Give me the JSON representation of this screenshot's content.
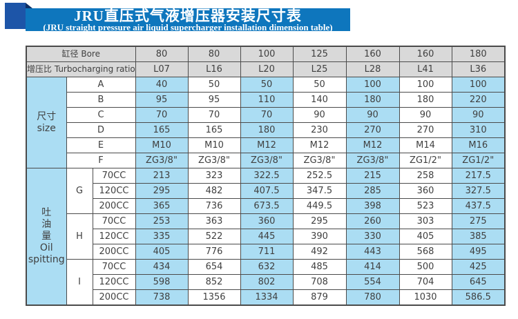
{
  "banner": {
    "title_zh": "JRU直压式气液增压器安装尺寸表",
    "title_en": "(JRU straight pressure air liquid supercharger installation dimension table)"
  },
  "colors": {
    "banner_blue": "#0e76bd",
    "ribbon_square_blue": "#1d55a8",
    "ribbon_fold_navy": "#0d2f66",
    "cell_highlight_blue": "#abddf3",
    "header_row_gray": "#d9d9d9",
    "border_gray": "#4a4a4a",
    "text_gray": "#3f3f3f"
  },
  "table": {
    "header_rows": [
      {
        "label": "缸径 Bore",
        "values": [
          "80",
          "80",
          "100",
          "125",
          "160",
          "160",
          "180"
        ]
      },
      {
        "label": "增压比 Turbocharging ratio",
        "values": [
          "L07",
          "L16",
          "L20",
          "L25",
          "L28",
          "L41",
          "L36"
        ]
      }
    ],
    "size_section": {
      "group_lines": [
        "尺寸",
        "size"
      ],
      "rows": [
        {
          "label": "A",
          "values": [
            "40",
            "50",
            "50",
            "50",
            "100",
            "100",
            "100"
          ]
        },
        {
          "label": "B",
          "values": [
            "95",
            "95",
            "110",
            "140",
            "180",
            "180",
            "220"
          ]
        },
        {
          "label": "C",
          "values": [
            "70",
            "70",
            "70",
            "90",
            "90",
            "90",
            "90"
          ]
        },
        {
          "label": "D",
          "values": [
            "165",
            "165",
            "180",
            "230",
            "270",
            "270",
            "310"
          ]
        },
        {
          "label": "E",
          "values": [
            "M10",
            "M10",
            "M12",
            "M12",
            "M12",
            "M14",
            "M16"
          ]
        },
        {
          "label": "F",
          "values": [
            "ZG3/8\"",
            "ZG3/8\"",
            "ZG3/8\"",
            "ZG3/8\"",
            "ZG3/8\"",
            "ZG1/2\"",
            "ZG1/2\""
          ]
        }
      ]
    },
    "oil_section": {
      "group_lines": [
        "吐",
        "油",
        "量",
        "Oil",
        "spitting"
      ],
      "subgroups": [
        {
          "label": "G",
          "rows": [
            {
              "label": "70CC",
              "values": [
                "213",
                "323",
                "322.5",
                "252.5",
                "215",
                "258",
                "217.5"
              ]
            },
            {
              "label": "120CC",
              "values": [
                "295",
                "482",
                "407.5",
                "347.5",
                "285",
                "360",
                "327.5"
              ]
            },
            {
              "label": "200CC",
              "values": [
                "365",
                "736",
                "673.5",
                "449.5",
                "398",
                "523",
                "437.5"
              ]
            }
          ]
        },
        {
          "label": "H",
          "rows": [
            {
              "label": "70CC",
              "values": [
                "253",
                "363",
                "360",
                "295",
                "260",
                "303",
                "275"
              ]
            },
            {
              "label": "120CC",
              "values": [
                "335",
                "522",
                "445",
                "390",
                "330",
                "405",
                "385"
              ]
            },
            {
              "label": "200CC",
              "values": [
                "405",
                "776",
                "711",
                "492",
                "443",
                "568",
                "495"
              ]
            }
          ]
        },
        {
          "label": "I",
          "rows": [
            {
              "label": "70CC",
              "values": [
                "434",
                "654",
                "632",
                "485",
                "414",
                "500",
                "425"
              ]
            },
            {
              "label": "120CC",
              "values": [
                "598",
                "852",
                "802",
                "708",
                "554",
                "704",
                "645"
              ]
            },
            {
              "label": "200CC",
              "values": [
                "738",
                "1356",
                "1334",
                "879",
                "780",
                "1030",
                "586.5"
              ]
            }
          ]
        }
      ]
    }
  }
}
